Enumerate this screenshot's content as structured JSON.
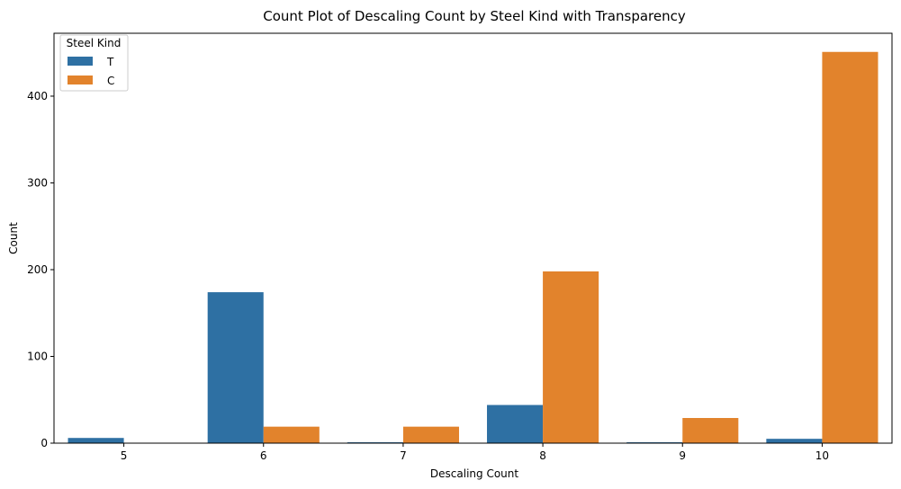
{
  "chart_data": {
    "type": "bar",
    "title": "Count Plot of Descaling Count by Steel Kind with Transparency",
    "xlabel": "Descaling Count",
    "ylabel": "Count",
    "categories": [
      "5",
      "6",
      "7",
      "8",
      "9",
      "10"
    ],
    "series": [
      {
        "name": "T",
        "color": "#2e70a3",
        "values": [
          6,
          174,
          1,
          44,
          1,
          5
        ]
      },
      {
        "name": "C",
        "color": "#e2832c",
        "values": [
          0,
          19,
          19,
          198,
          29,
          451
        ]
      }
    ],
    "ylim": [
      0,
      472.5
    ],
    "yticks": [
      0,
      100,
      200,
      300,
      400
    ],
    "legend": {
      "title": "Steel Kind",
      "position": "top-left"
    },
    "grid": false
  }
}
